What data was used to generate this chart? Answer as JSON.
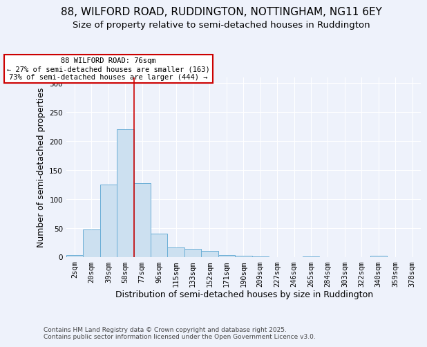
{
  "title1": "88, WILFORD ROAD, RUDDINGTON, NOTTINGHAM, NG11 6EY",
  "title2": "Size of property relative to semi-detached houses in Ruddington",
  "xlabel": "Distribution of semi-detached houses by size in Ruddington",
  "ylabel": "Number of semi-detached properties",
  "categories": [
    "2sqm",
    "20sqm",
    "39sqm",
    "58sqm",
    "77sqm",
    "96sqm",
    "115sqm",
    "133sqm",
    "152sqm",
    "171sqm",
    "190sqm",
    "209sqm",
    "227sqm",
    "246sqm",
    "265sqm",
    "284sqm",
    "303sqm",
    "322sqm",
    "340sqm",
    "359sqm",
    "378sqm"
  ],
  "bar_values": [
    4,
    48,
    125,
    220,
    128,
    41,
    17,
    14,
    11,
    4,
    2,
    1,
    0,
    0,
    1,
    0,
    0,
    0,
    2,
    0,
    0
  ],
  "bar_color": "#cce0f0",
  "bar_edge_color": "#6aaed6",
  "vline_x_index": 3,
  "vline_color": "#cc0000",
  "annotation_title": "88 WILFORD ROAD: 76sqm",
  "annotation_line1": "← 27% of semi-detached houses are smaller (163)",
  "annotation_line2": "73% of semi-detached houses are larger (444) →",
  "annotation_box_color": "#cc0000",
  "ylim": [
    0,
    310
  ],
  "yticks": [
    0,
    50,
    100,
    150,
    200,
    250,
    300
  ],
  "footnote": "Contains HM Land Registry data © Crown copyright and database right 2025.\nContains public sector information licensed under the Open Government Licence v3.0.",
  "background_color": "#eef2fb",
  "plot_bg_color": "#eef2fb",
  "title1_fontsize": 11,
  "title2_fontsize": 9.5,
  "axis_label_fontsize": 9,
  "tick_fontsize": 7.5,
  "footnote_fontsize": 6.5,
  "ann_fontsize": 7.5
}
